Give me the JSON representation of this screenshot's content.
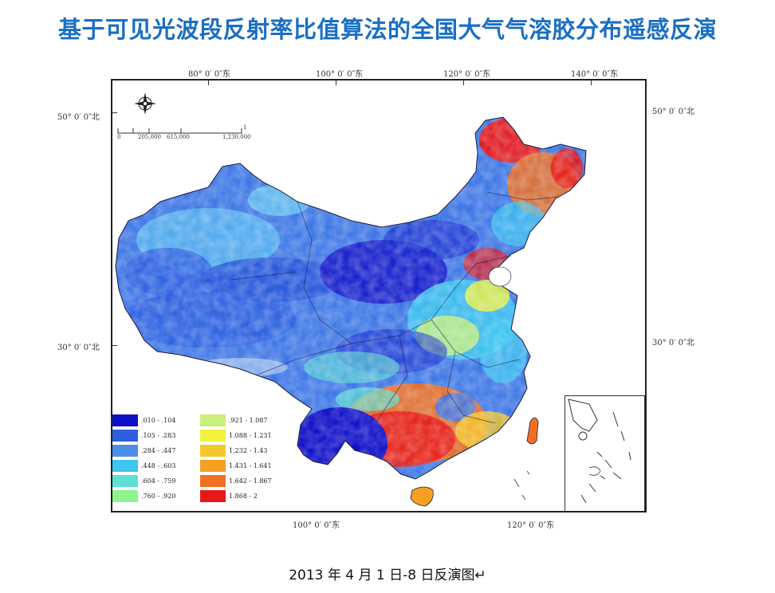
{
  "title": "基于可见光波段反射率比值算法的全国大气气溶胶分布遥感反演",
  "caption": "2013 年 4 月 1 日-8 日反演图↵",
  "map": {
    "top_lon_labels": [
      "80° 0′ 0″东",
      "100° 0′ 0″东",
      "120° 0′ 0″东",
      "140° 0′ 0″东"
    ],
    "bottom_lon_labels": [
      "100° 0′ 0″东",
      "120° 0′ 0″东"
    ],
    "left_lat_labels": [
      "50° 0′ 0″北",
      "30° 0′ 0″北"
    ],
    "right_lat_labels": [
      "50° 0′ 0″北",
      "30° 0′ 0″北"
    ],
    "scale_labels": [
      "0",
      "205,000",
      "615,000",
      "1,230,000"
    ],
    "scale_unit": "1",
    "compass_icon": "compass-rose-icon",
    "legend": [
      {
        "label": ".010 - .104",
        "color": "#1010c8"
      },
      {
        "label": ".105 - .283",
        "color": "#2d5fe0"
      },
      {
        "label": ".284 - .447",
        "color": "#4b8ee8"
      },
      {
        "label": ".448 - .603",
        "color": "#3cc6f0"
      },
      {
        "label": ".604 - .759",
        "color": "#5fe0d2"
      },
      {
        "label": ".760 - .920",
        "color": "#8ef58e"
      },
      {
        "label": ".921 - 1.087",
        "color": "#c8f07a"
      },
      {
        "label": "1.088 - 1.231",
        "color": "#f2f23a"
      },
      {
        "label": "1.232 - 1.43",
        "color": "#f5c82a"
      },
      {
        "label": "1.431 - 1.641",
        "color": "#f5a020"
      },
      {
        "label": "1.642 - 1.867",
        "color": "#f07020"
      },
      {
        "label": "1.868 - 2",
        "color": "#e81818"
      }
    ]
  }
}
